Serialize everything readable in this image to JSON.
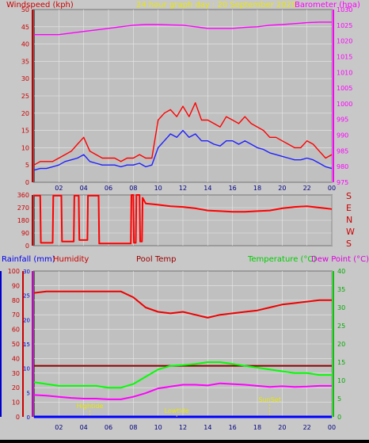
{
  "colors": {
    "bg": "#c8c8c8",
    "plot_bg": "#c0c0c0",
    "grid": "#e8e8e8",
    "windspeed": "#ff0000",
    "wind_avg": "#2020ff",
    "barometer": "#ff00ff",
    "direction": "#ff0000",
    "rainfall": "#0000ff",
    "humidity": "#ee0000",
    "pool": "#8b0000",
    "temperature": "#00ff00",
    "dewpoint": "#ff00ff",
    "annotation": "#e8e800",
    "frame": "#000000"
  },
  "header": {
    "windspeed_label": "Windspeed (kph)",
    "title": "24 hour graph day : 20 September 2020",
    "barometer_label": "Barometer (hpa)"
  },
  "middle": {
    "compass": [
      "S",
      "E",
      "N",
      "W",
      "S"
    ]
  },
  "bottom_header": {
    "rainfall_label": "Rainfall (mm)",
    "humidity_label": "Humidity",
    "pool_label": "Pool Temp",
    "temperature_label": "Temperature (°C)",
    "dewpoint_label": "Dew Point (°C)"
  },
  "annotations": [
    "Hightide",
    "Lowtide",
    "SunSet"
  ],
  "x_ticks": [
    "02",
    "04",
    "06",
    "08",
    "10",
    "12",
    "14",
    "16",
    "18",
    "20",
    "22",
    "00"
  ],
  "chart_data": [
    {
      "type": "line",
      "name": "wind-barometer",
      "x_unit": "hour",
      "x_range": [
        0,
        24
      ],
      "y_left": {
        "label": "Windspeed (kph)",
        "range": [
          0,
          50
        ],
        "ticks": [
          0,
          5,
          10,
          15,
          20,
          25,
          30,
          35,
          40,
          45,
          50
        ]
      },
      "y_right": {
        "label": "Barometer (hpa)",
        "range": [
          975,
          1030
        ],
        "ticks": [
          975,
          980,
          985,
          990,
          995,
          1000,
          1005,
          1010,
          1015,
          1020,
          1025,
          1030
        ]
      },
      "series": [
        {
          "name": "Windspeed",
          "axis": "left",
          "x": [
            0,
            0.5,
            1,
            1.5,
            2,
            2.5,
            3,
            3.5,
            4,
            4.5,
            5,
            5.5,
            6,
            6.5,
            7,
            7.5,
            8,
            8.5,
            9,
            9.5,
            10,
            10.5,
            11,
            11.5,
            12,
            12.5,
            13,
            13.5,
            14,
            14.5,
            15,
            15.5,
            16,
            16.5,
            17,
            17.5,
            18,
            18.5,
            19,
            19.5,
            20,
            20.5,
            21,
            21.5,
            22,
            22.5,
            23,
            23.5,
            24
          ],
          "values": [
            5,
            6,
            6,
            6,
            7,
            8,
            9,
            11,
            13,
            9,
            8,
            7,
            7,
            7,
            6,
            7,
            7,
            8,
            7,
            7,
            18,
            20,
            21,
            19,
            22,
            19,
            23,
            18,
            18,
            17,
            16,
            19,
            18,
            17,
            19,
            17,
            16,
            15,
            13,
            13,
            12,
            11,
            10,
            10,
            12,
            11,
            9,
            7,
            8
          ]
        },
        {
          "name": "Average wind",
          "axis": "left",
          "x": [
            0,
            0.5,
            1,
            1.5,
            2,
            2.5,
            3,
            3.5,
            4,
            4.5,
            5,
            5.5,
            6,
            6.5,
            7,
            7.5,
            8,
            8.5,
            9,
            9.5,
            10,
            10.5,
            11,
            11.5,
            12,
            12.5,
            13,
            13.5,
            14,
            14.5,
            15,
            15.5,
            16,
            16.5,
            17,
            17.5,
            18,
            18.5,
            19,
            19.5,
            20,
            20.5,
            21,
            21.5,
            22,
            22.5,
            23,
            23.5,
            24
          ],
          "values": [
            3.5,
            4,
            4,
            4.5,
            5,
            6,
            6.5,
            7,
            8,
            6,
            5.5,
            5,
            5,
            5,
            4.5,
            5,
            5,
            5.5,
            4.5,
            5,
            10,
            12,
            14,
            13,
            15,
            13,
            14,
            12,
            12,
            11,
            10.5,
            12,
            12,
            11,
            12,
            11,
            10,
            9.5,
            8.5,
            8,
            7.5,
            7,
            6.5,
            6.5,
            7,
            6.5,
            5.5,
            4.5,
            4
          ]
        },
        {
          "name": "Barometer",
          "axis": "right",
          "x": [
            0,
            1,
            2,
            3,
            4,
            5,
            6,
            7,
            8,
            9,
            10,
            11,
            12,
            13,
            14,
            15,
            16,
            17,
            18,
            19,
            20,
            21,
            22,
            23,
            24
          ],
          "values": [
            1022,
            1022,
            1022,
            1022.5,
            1023,
            1023.5,
            1024,
            1024.5,
            1025,
            1025.2,
            1025.2,
            1025.1,
            1025,
            1024.5,
            1024,
            1024,
            1024,
            1024.3,
            1024.5,
            1025,
            1025.2,
            1025.5,
            1025.8,
            1026,
            1026
          ]
        }
      ]
    },
    {
      "type": "line",
      "name": "wind-direction",
      "x_unit": "hour",
      "x_range": [
        0,
        24
      ],
      "y_left": {
        "range": [
          0,
          360
        ],
        "ticks": [
          0,
          90,
          180,
          270,
          360
        ]
      },
      "series": [
        {
          "name": "Wind direction",
          "x": [
            0,
            0.5,
            0.55,
            1.5,
            1.55,
            2.2,
            2.25,
            3.2,
            3.25,
            3.6,
            3.65,
            4.3,
            4.35,
            5.2,
            5.25,
            7.8,
            7.85,
            8.0,
            8.05,
            8.2,
            8.25,
            8.5,
            8.55,
            8.7,
            8.75,
            9,
            10,
            11,
            12,
            13,
            14,
            15,
            16,
            17,
            18,
            19,
            20,
            21,
            22,
            23,
            24
          ],
          "values": [
            355,
            355,
            20,
            20,
            355,
            355,
            30,
            30,
            355,
            355,
            40,
            40,
            355,
            355,
            15,
            15,
            360,
            360,
            20,
            20,
            360,
            360,
            30,
            30,
            340,
            300,
            290,
            280,
            275,
            265,
            250,
            245,
            240,
            240,
            245,
            250,
            265,
            275,
            280,
            270,
            260
          ]
        }
      ]
    },
    {
      "type": "line",
      "name": "temperature-humidity",
      "x_unit": "hour",
      "x_range": [
        0,
        24
      ],
      "y_left": {
        "label": "Rainfall (mm)",
        "range": [
          0,
          100
        ],
        "ticks": [
          0,
          10,
          20,
          30,
          40,
          50,
          60,
          70,
          80,
          90,
          100
        ]
      },
      "y_left2": {
        "range": [
          0,
          30
        ],
        "ticks": [
          0,
          5,
          10,
          15,
          20,
          25,
          30
        ]
      },
      "y_right": {
        "label": "Temperature (°C)",
        "range": [
          0,
          40
        ],
        "ticks": [
          0,
          5,
          10,
          15,
          20,
          25,
          30,
          35,
          40
        ]
      },
      "series": [
        {
          "name": "Humidity",
          "axis": "left",
          "x": [
            0,
            1,
            2,
            3,
            4,
            5,
            6,
            7,
            8,
            9,
            10,
            11,
            12,
            13,
            14,
            15,
            16,
            17,
            18,
            19,
            20,
            21,
            22,
            23,
            24
          ],
          "values": [
            85,
            86,
            86,
            86,
            86,
            86,
            86,
            86,
            82,
            75,
            72,
            71,
            72,
            70,
            68,
            70,
            71,
            72,
            73,
            75,
            77,
            78,
            79,
            80,
            80
          ]
        },
        {
          "name": "Pool Temp",
          "axis": "right",
          "x": [
            0,
            2,
            4,
            6,
            8,
            10,
            12,
            14,
            16,
            18,
            20,
            22,
            24
          ],
          "values": [
            14,
            14,
            14,
            14,
            14,
            14,
            14,
            14,
            14,
            14,
            14,
            14,
            14
          ]
        },
        {
          "name": "Temperature",
          "axis": "right",
          "x": [
            0,
            1,
            2,
            3,
            4,
            5,
            6,
            7,
            8,
            9,
            10,
            11,
            12,
            13,
            14,
            15,
            16,
            17,
            18,
            19,
            20,
            21,
            22,
            23,
            24
          ],
          "values": [
            9.5,
            9,
            8.5,
            8.5,
            8.5,
            8.5,
            8,
            8,
            9,
            11,
            13,
            14,
            14.2,
            14.5,
            15,
            15,
            14.5,
            14,
            13.5,
            13,
            12.5,
            12,
            12,
            11.5,
            11.5
          ]
        },
        {
          "name": "Dew Point",
          "axis": "right",
          "x": [
            0,
            1,
            2,
            3,
            4,
            5,
            6,
            7,
            8,
            9,
            10,
            11,
            12,
            13,
            14,
            15,
            16,
            17,
            18,
            19,
            20,
            21,
            22,
            23,
            24
          ],
          "values": [
            6,
            5.8,
            5.5,
            5.2,
            5,
            5,
            4.8,
            4.8,
            5.5,
            6.5,
            7.8,
            8.3,
            8.8,
            8.8,
            8.6,
            9.2,
            9,
            8.8,
            8.5,
            8.2,
            8.4,
            8.2,
            8.3,
            8.5,
            8.5
          ]
        },
        {
          "name": "Rainfall",
          "axis": "left",
          "x": [
            0,
            24
          ],
          "values": [
            0,
            0
          ]
        }
      ]
    }
  ]
}
